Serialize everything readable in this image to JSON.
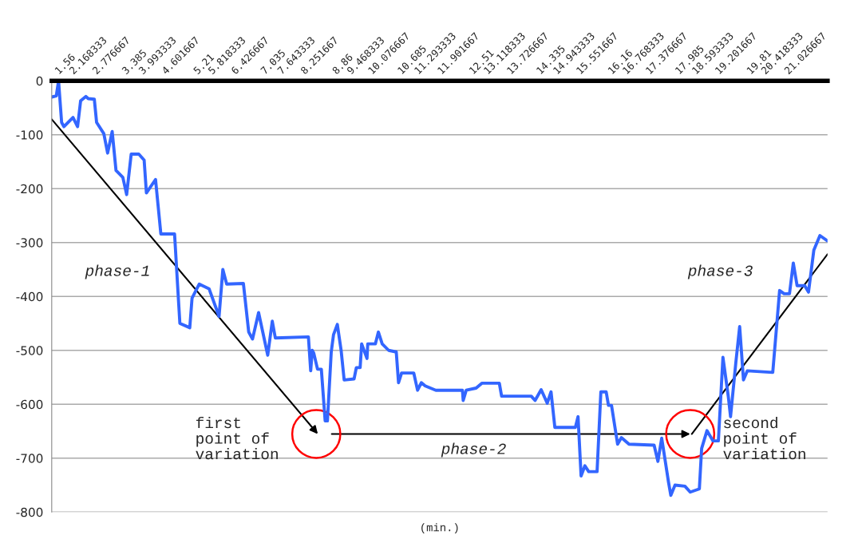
{
  "chart_data": {
    "type": "line",
    "xlabel": "(min.)",
    "x": [
      1.2,
      1.32,
      1.38,
      1.46,
      1.52,
      1.66,
      1.76,
      1.88,
      1.96,
      2.1,
      2.16,
      2.32,
      2.38,
      2.57,
      2.67,
      2.79,
      2.89,
      3.07,
      3.17,
      3.29,
      3.49,
      3.63,
      3.69,
      3.93,
      4.07,
      4.43,
      4.53,
      4.57,
      4.83,
      4.89,
      5.08,
      5.34,
      5.6,
      5.7,
      5.8,
      6.24,
      6.38,
      6.48,
      6.64,
      6.88,
      7.0,
      7.08,
      7.95,
      8.01,
      8.05,
      8.09,
      8.19,
      8.29,
      8.39,
      8.45,
      8.55,
      8.61,
      8.71,
      8.81,
      8.89,
      9.15,
      9.21,
      9.31,
      9.35,
      9.49,
      9.51,
      9.71,
      9.79,
      9.89,
      10.06,
      10.26,
      10.32,
      10.4,
      10.72,
      10.82,
      10.92,
      11.02,
      11.3,
      12.0,
      12.02,
      12.1,
      12.36,
      12.51,
      12.97,
      13.03,
      13.81,
      13.91,
      14.07,
      14.23,
      14.33,
      14.43,
      14.97,
      15.04,
      15.12,
      15.22,
      15.32,
      15.54,
      15.64,
      15.78,
      15.84,
      15.92,
      16.08,
      16.18,
      16.38,
      17.04,
      17.14,
      17.24,
      17.42,
      17.48,
      17.59,
      17.85,
      17.99,
      18.23,
      18.29,
      18.43,
      18.59,
      18.73,
      18.85,
      18.99,
      19.05,
      19.19,
      19.29,
      19.39,
      19.49,
      20.16,
      20.34,
      20.46,
      20.6,
      20.7,
      20.8,
      21.0,
      21.1,
      21.24,
      21.4,
      21.6
    ],
    "series": [
      {
        "color": "#3366ff",
        "values": [
          -30,
          -28,
          0,
          -77,
          -85,
          -75,
          -68,
          -85,
          -37,
          -29,
          -33,
          -34,
          -77,
          -98,
          -134,
          -94,
          -166,
          -179,
          -211,
          -136,
          -136,
          -147,
          -208,
          -183,
          -284,
          -284,
          -403,
          -450,
          -458,
          -403,
          -377,
          -386,
          -437,
          -350,
          -377,
          -376,
          -466,
          -479,
          -430,
          -509,
          -446,
          -477,
          -475,
          -538,
          -500,
          -505,
          -535,
          -535,
          -631,
          -631,
          -503,
          -471,
          -452,
          -500,
          -555,
          -553,
          -532,
          -532,
          -488,
          -515,
          -488,
          -488,
          -466,
          -488,
          -500,
          -503,
          -560,
          -542,
          -542,
          -574,
          -560,
          -566,
          -574,
          -574,
          -593,
          -574,
          -570,
          -561,
          -561,
          -585,
          -585,
          -593,
          -573,
          -598,
          -577,
          -643,
          -643,
          -623,
          -733,
          -714,
          -725,
          -725,
          -577,
          -577,
          -602,
          -602,
          -674,
          -662,
          -674,
          -676,
          -706,
          -663,
          -745,
          -769,
          -750,
          -752,
          -763,
          -757,
          -682,
          -649,
          -668,
          -668,
          -513,
          -585,
          -623,
          -522,
          -456,
          -555,
          -538,
          -541,
          -389,
          -395,
          -395,
          -338,
          -380,
          -380,
          -392,
          -314,
          -287,
          -297
        ]
      }
    ],
    "xlim": [
      1.2,
      21.6
    ],
    "xticks": [
      1.56,
      2.168333,
      2.776667,
      3.385,
      3.993333,
      4.601667,
      5.21,
      5.818333,
      6.426667,
      7.035,
      7.643333,
      8.251667,
      8.86,
      9.468333,
      10.076667,
      10.685,
      11.293333,
      11.901667,
      12.51,
      13.118333,
      13.726667,
      14.335,
      14.943333,
      15.551667,
      16.16,
      16.768333,
      17.376667,
      17.985,
      18.593333,
      19.201667,
      19.81,
      20.418333,
      21.026667
    ],
    "ylim": [
      -800,
      0
    ],
    "yticks": [
      -800,
      -700,
      -600,
      -500,
      -400,
      -300,
      -200,
      -100,
      0
    ],
    "grid": "y",
    "annotations": [
      "phase-1",
      "first point of variation",
      "phase-2",
      "second point of variation",
      "phase-3"
    ]
  }
}
